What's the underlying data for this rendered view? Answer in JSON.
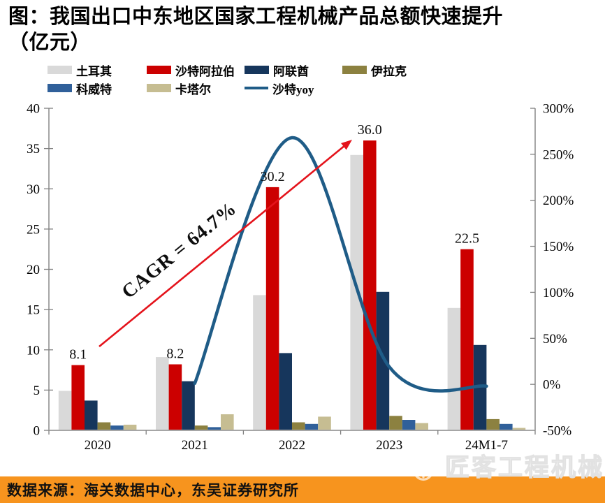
{
  "title": {
    "line1": "图：我国出口中东地区国家工程机械产品总额快速提升",
    "line2": "（亿元）"
  },
  "legend": {
    "items": [
      {
        "label": "土耳其",
        "color": "#D9D9D9",
        "swatch": "box"
      },
      {
        "label": "沙特阿拉伯",
        "color": "#CC0000",
        "swatch": "box"
      },
      {
        "label": "阿联酋",
        "color": "#16365C",
        "swatch": "box"
      },
      {
        "label": "伊拉克",
        "color": "#8C8140",
        "swatch": "box"
      },
      {
        "label": "科威特",
        "color": "#30609A",
        "swatch": "box"
      },
      {
        "label": "卡塔尔",
        "color": "#C6BD92",
        "swatch": "box"
      },
      {
        "label": "沙特yoy",
        "color": "#1F5C87",
        "swatch": "line"
      }
    ]
  },
  "chart_data": {
    "type": "bar",
    "title": "我国出口中东地区国家工程机械产品总额（亿元）",
    "categories": [
      "2020",
      "2021",
      "2022",
      "2023",
      "24M1-7"
    ],
    "series": [
      {
        "name": "土耳其",
        "color": "#D9D9D9",
        "values": [
          4.9,
          9.1,
          16.8,
          34.2,
          15.2
        ]
      },
      {
        "name": "沙特阿拉伯",
        "color": "#CC0000",
        "values": [
          8.1,
          8.2,
          30.2,
          36.0,
          22.5
        ]
      },
      {
        "name": "阿联酋",
        "color": "#16365C",
        "values": [
          3.7,
          6.1,
          9.6,
          17.2,
          10.6
        ]
      },
      {
        "name": "伊拉克",
        "color": "#8C8140",
        "values": [
          1.0,
          0.6,
          1.0,
          1.8,
          1.4
        ]
      },
      {
        "name": "科威特",
        "color": "#30609A",
        "values": [
          0.6,
          0.4,
          0.8,
          1.3,
          0.8
        ]
      },
      {
        "name": "卡塔尔",
        "color": "#C6BD92",
        "values": [
          0.7,
          2.0,
          1.7,
          0.9,
          0.3
        ]
      }
    ],
    "line_series": {
      "name": "沙特yoy",
      "color": "#1F5C87",
      "axis": "right",
      "categories": [
        "2021",
        "2022",
        "2023",
        "24M1-7"
      ],
      "values_pct": [
        1,
        268,
        19,
        -2
      ]
    },
    "bar_labels": {
      "series": "沙特阿拉伯",
      "labels": [
        "8.1",
        "8.2",
        "30.2",
        "36.0",
        "22.5"
      ]
    },
    "left_axis": {
      "ticks": [
        "0",
        "5",
        "10",
        "15",
        "20",
        "25",
        "30",
        "35",
        "40"
      ],
      "range": [
        0,
        40
      ]
    },
    "right_axis": {
      "ticks": [
        "-50%",
        "0%",
        "50%",
        "100%",
        "150%",
        "200%",
        "250%",
        "300%"
      ],
      "range": [
        -50,
        300
      ]
    },
    "annotation": {
      "text": "CAGR = 64.7%",
      "arrow_color": "#E4131B"
    },
    "grid": false,
    "legend_position": "top"
  },
  "source": {
    "text": "数据来源：海关数据中心，东吴证券研究所",
    "bar_color": "#F7941E"
  },
  "watermark": {
    "text": "匠客工程机械",
    "icon": "anchor-icon"
  }
}
